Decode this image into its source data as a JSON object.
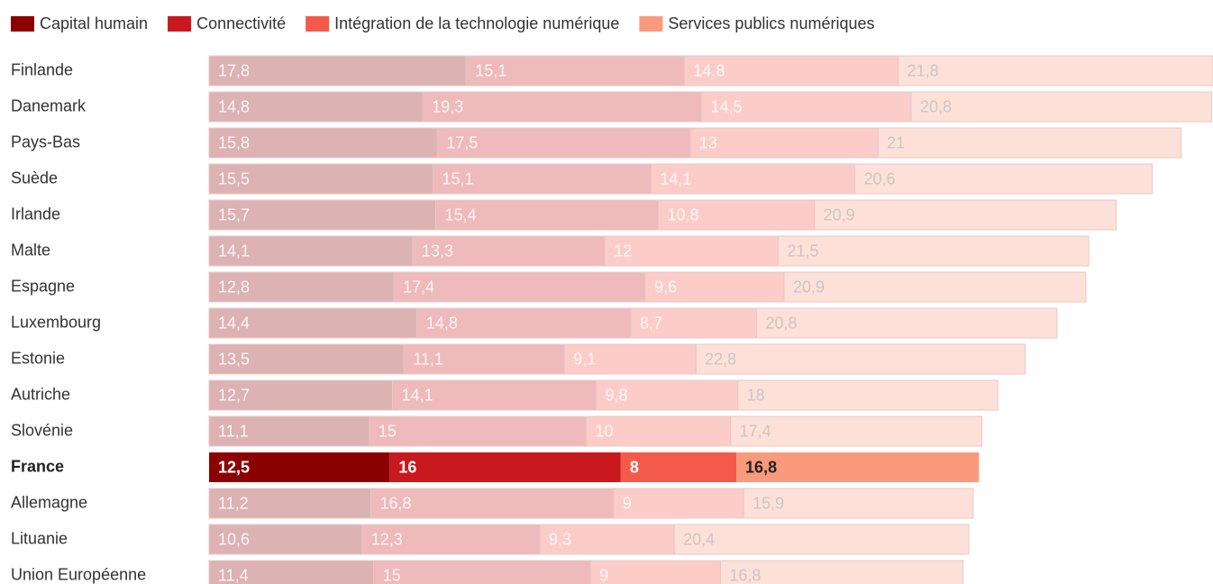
{
  "chart_data": {
    "type": "stacked-bar-horizontal",
    "categories": [
      "Finlande",
      "Danemark",
      "Pays-Bas",
      "Suède",
      "Irlande",
      "Malte",
      "Espagne",
      "Luxembourg",
      "Estonie",
      "Autriche",
      "Slovénie",
      "France",
      "Allemagne",
      "Lituanie",
      "Union Européenne"
    ],
    "highlight": "France",
    "series": [
      {
        "name": "Capital humain",
        "color": "#8b0000",
        "values": [
          17.8,
          14.8,
          15.8,
          15.5,
          15.7,
          14.1,
          12.8,
          14.4,
          13.5,
          12.7,
          11.1,
          12.5,
          11.2,
          10.6,
          11.4
        ],
        "value_labels": [
          "17,8",
          "14,8",
          "15,8",
          "15,5",
          "15,7",
          "14,1",
          "12,8",
          "14,4",
          "13,5",
          "12,7",
          "11,1",
          "12,5",
          "11,2",
          "10,6",
          "11,4"
        ]
      },
      {
        "name": "Connectivité",
        "color": "#c8191f",
        "values": [
          15.1,
          19.3,
          17.5,
          15.1,
          15.4,
          13.3,
          17.4,
          14.8,
          11.1,
          14.1,
          15,
          16,
          16.8,
          12.3,
          15
        ],
        "value_labels": [
          "15,1",
          "19,3",
          "17,5",
          "15,1",
          "15,4",
          "13,3",
          "17,4",
          "14,8",
          "11,1",
          "14,1",
          "15",
          "16",
          "16,8",
          "12,3",
          "15"
        ]
      },
      {
        "name": "Intégration de la technologie numérique",
        "color": "#f45a4a",
        "values": [
          14.8,
          14.5,
          13,
          14.1,
          10.8,
          12,
          9.6,
          8.7,
          9.1,
          9.8,
          10,
          8,
          9,
          9.3,
          9
        ],
        "value_labels": [
          "14,8",
          "14,5",
          "13",
          "14,1",
          "10,8",
          "12",
          "9,6",
          "8,7",
          "9,1",
          "9,8",
          "10",
          "8",
          "9",
          "9,3",
          "9"
        ]
      },
      {
        "name": "Services publics numériques",
        "color": "#f99a7d",
        "values": [
          21.8,
          20.8,
          21,
          20.6,
          20.9,
          21.5,
          20.9,
          20.8,
          22.8,
          18,
          17.4,
          16.8,
          15.9,
          20.4,
          16.8
        ],
        "value_labels": [
          "21,8",
          "20,8",
          "21",
          "20,6",
          "20,9",
          "21,5",
          "20,9",
          "20,8",
          "22,8",
          "18",
          "17,4",
          "16,8",
          "15,9",
          "20,4",
          "16,8"
        ]
      }
    ]
  }
}
